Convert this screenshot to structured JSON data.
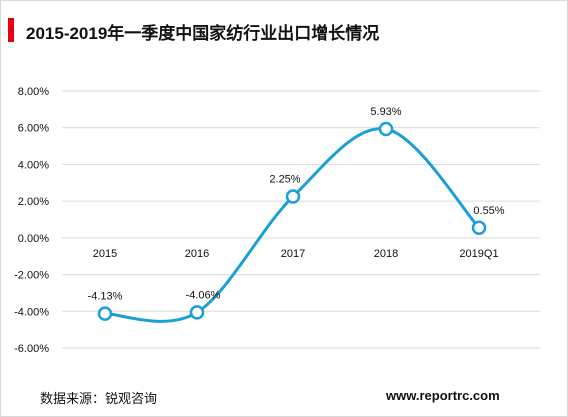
{
  "header": {
    "title": "2015-2019年一季度中国家纺行业出口增长情况"
  },
  "footer": {
    "source": "数据来源：锐观咨询",
    "website": "www.reportrc.com"
  },
  "colors": {
    "line": "#1a9fd6",
    "accent": "#e60012",
    "grid": "#d9d9d9",
    "text": "#111111"
  },
  "chart_data": {
    "type": "line",
    "title": "2015-2019年一季度中国家纺行业出口增长情况",
    "categories": [
      "2015",
      "2016",
      "2017",
      "2018",
      "2019Q1"
    ],
    "series": [
      {
        "values": [
          -4.13,
          -4.06,
          2.25,
          5.93,
          0.55
        ],
        "labels": [
          "-4.13%",
          "-4.06%",
          "2.25%",
          "5.93%",
          "0.55%"
        ]
      }
    ],
    "yticks": [
      "8.00%",
      "6.00%",
      "4.00%",
      "2.00%",
      "0.00%",
      "-2.00%",
      "-4.00%",
      "-6.00%"
    ],
    "ylim": [
      -6,
      8
    ],
    "grid": true,
    "smooth": true,
    "xlabel": "",
    "ylabel": ""
  }
}
